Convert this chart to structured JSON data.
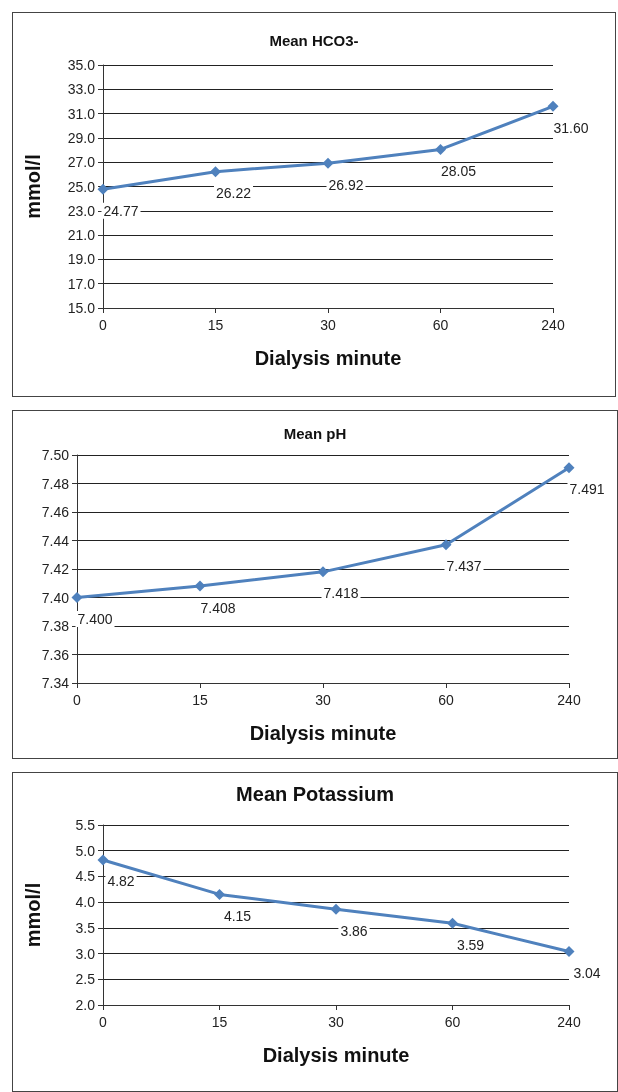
{
  "chart_data": [
    {
      "type": "line",
      "title": "Mean HCO3-",
      "xlabel": "Dialysis minute",
      "ylabel": "mmol/l",
      "categories": [
        "0",
        "15",
        "30",
        "60",
        "240"
      ],
      "series": [
        {
          "color": "#4f81bd",
          "values": [
            24.77,
            26.22,
            26.92,
            28.05,
            31.6
          ],
          "value_labels": [
            "24.77",
            "26.22",
            "26.92",
            "28.05",
            "31.60"
          ]
        }
      ],
      "ylim": [
        15,
        35
      ],
      "yticks": [
        {
          "value": 15,
          "label": "15.0"
        },
        {
          "value": 17,
          "label": "17.0"
        },
        {
          "value": 19,
          "label": "19.0"
        },
        {
          "value": 21,
          "label": "21.0"
        },
        {
          "value": 23,
          "label": "23.0"
        },
        {
          "value": 25,
          "label": "25.0"
        },
        {
          "value": 27,
          "label": "27.0"
        },
        {
          "value": 29,
          "label": "29.0"
        },
        {
          "value": 31,
          "label": "31.0"
        },
        {
          "value": 33,
          "label": "33.0"
        },
        {
          "value": 35,
          "label": "35.0"
        }
      ],
      "grid": "y",
      "marker": "diamond",
      "line_style": "solid"
    },
    {
      "type": "line",
      "title": "Mean pH",
      "xlabel": "Dialysis minute",
      "categories": [
        "0",
        "15",
        "30",
        "60",
        "240"
      ],
      "series": [
        {
          "color": "#4f81bd",
          "values": [
            7.4,
            7.408,
            7.418,
            7.437,
            7.491
          ],
          "value_labels": [
            "7.400",
            "7.408",
            "7.418",
            "7.437",
            "7.491"
          ]
        }
      ],
      "ylim": [
        7.34,
        7.5
      ],
      "yticks": [
        {
          "value": 7.34,
          "label": "7.34"
        },
        {
          "value": 7.36,
          "label": "7.36"
        },
        {
          "value": 7.38,
          "label": "7.38"
        },
        {
          "value": 7.4,
          "label": "7.40"
        },
        {
          "value": 7.42,
          "label": "7.42"
        },
        {
          "value": 7.44,
          "label": "7.44"
        },
        {
          "value": 7.46,
          "label": "7.46"
        },
        {
          "value": 7.48,
          "label": "7.48"
        },
        {
          "value": 7.5,
          "label": "7.50"
        }
      ],
      "grid": "y",
      "marker": "diamond",
      "line_style": "solid"
    },
    {
      "type": "line",
      "title": "Mean Potassium",
      "xlabel": "Dialysis minute",
      "ylabel": "mmol/l",
      "categories": [
        "0",
        "15",
        "30",
        "60",
        "240"
      ],
      "series": [
        {
          "color": "#4f81bd",
          "values": [
            4.82,
            4.15,
            3.86,
            3.59,
            3.04
          ],
          "value_labels": [
            "4.82",
            "4.15",
            "3.86",
            "3.59",
            "3.04"
          ]
        }
      ],
      "ylim": [
        2,
        5.5
      ],
      "yticks": [
        {
          "value": 2,
          "label": "2.0"
        },
        {
          "value": 2.5,
          "label": "2.5"
        },
        {
          "value": 3,
          "label": "3.0"
        },
        {
          "value": 3.5,
          "label": "3.5"
        },
        {
          "value": 4,
          "label": "4.0"
        },
        {
          "value": 4.5,
          "label": "4.5"
        },
        {
          "value": 5,
          "label": "5.0"
        },
        {
          "value": 5.5,
          "label": "5.5"
        }
      ],
      "grid": "y",
      "marker": "diamond",
      "line_style": "solid"
    }
  ]
}
